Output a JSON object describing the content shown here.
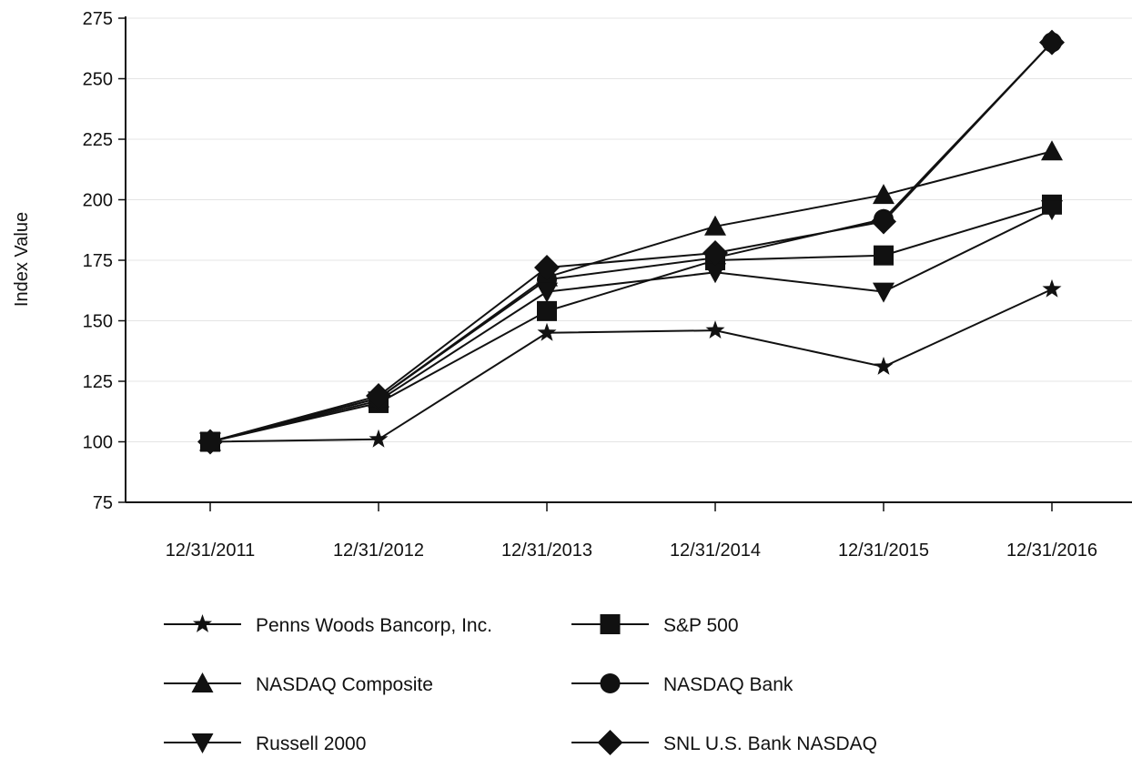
{
  "chart_data": {
    "type": "line",
    "title": "",
    "xlabel": "",
    "ylabel": "Index Value",
    "categories": [
      "12/31/2011",
      "12/31/2012",
      "12/31/2013",
      "12/31/2014",
      "12/31/2015",
      "12/31/2016"
    ],
    "ylim": [
      75,
      275
    ],
    "yticks": [
      "75",
      "100",
      "125",
      "150",
      "175",
      "200",
      "225",
      "250",
      "275"
    ],
    "grid": true,
    "legend_position": "bottom",
    "line_color": "#111111",
    "series": [
      {
        "name": "Penns Woods Bancorp, Inc.",
        "marker": "star",
        "values": [
          100,
          101,
          145,
          146,
          131,
          163
        ]
      },
      {
        "name": "S&P 500",
        "marker": "square",
        "values": [
          100,
          116,
          154,
          175,
          177,
          198
        ]
      },
      {
        "name": "NASDAQ Composite",
        "marker": "triangle-up",
        "values": [
          100,
          118,
          168,
          189,
          202,
          220
        ]
      },
      {
        "name": "NASDAQ Bank",
        "marker": "circle",
        "values": [
          100,
          118,
          167,
          176,
          192,
          265
        ]
      },
      {
        "name": "Russell 2000",
        "marker": "triangle-down",
        "values": [
          100,
          117,
          162,
          170,
          162,
          196
        ]
      },
      {
        "name": "SNL U.S. Bank NASDAQ",
        "marker": "diamond",
        "values": [
          100,
          119,
          172,
          178,
          191,
          265
        ]
      }
    ]
  }
}
